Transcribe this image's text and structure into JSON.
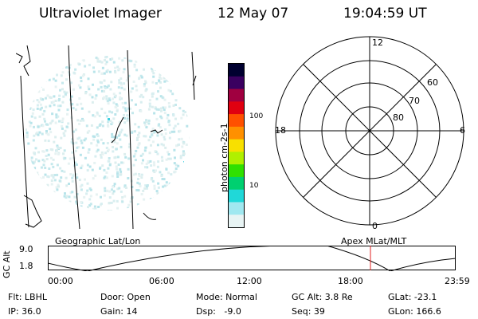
{
  "header": {
    "instrument": "Ultraviolet Imager",
    "date": "12 May 07",
    "time": "19:04:59 UT"
  },
  "colorbar": {
    "label": "photon cm-2s-1",
    "ticks": [
      "100",
      "10"
    ],
    "colors": [
      "#000030",
      "#3a0060",
      "#a00040",
      "#e00010",
      "#ff5000",
      "#ff9000",
      "#f8e000",
      "#b0f000",
      "#30e000",
      "#00d070",
      "#20d8d8",
      "#a0e8f0",
      "#e8f4f4"
    ]
  },
  "polar_plot": {
    "clock_labels": [
      "12",
      "18",
      "6",
      "0"
    ],
    "lat_labels": [
      "60",
      "70",
      "80"
    ]
  },
  "map_labels": {
    "left": "Geographic Lat/Lon",
    "right": "Apex MLat/MLT"
  },
  "altitude_plot": {
    "ylabel": "GC Alt",
    "y_ticks": [
      "9.0",
      "1.8"
    ],
    "x_ticks": [
      "00:00",
      "06:00",
      "12:00",
      "18:00",
      "23:59"
    ],
    "marker_color": "#e02020"
  },
  "footer": {
    "row1": {
      "filter": "Flt: LBHL",
      "door": "Door: Open",
      "mode": "Mode: Normal",
      "gc_alt": "GC Alt: 3.8 Re",
      "glat": "GLat: -23.1"
    },
    "row2": {
      "ip": "IP: 36.0",
      "gain": "Gain: 14",
      "dsp": "Dsp:   -9.0",
      "seq": "Seq: 39",
      "glon": "GLon: 166.6"
    }
  }
}
